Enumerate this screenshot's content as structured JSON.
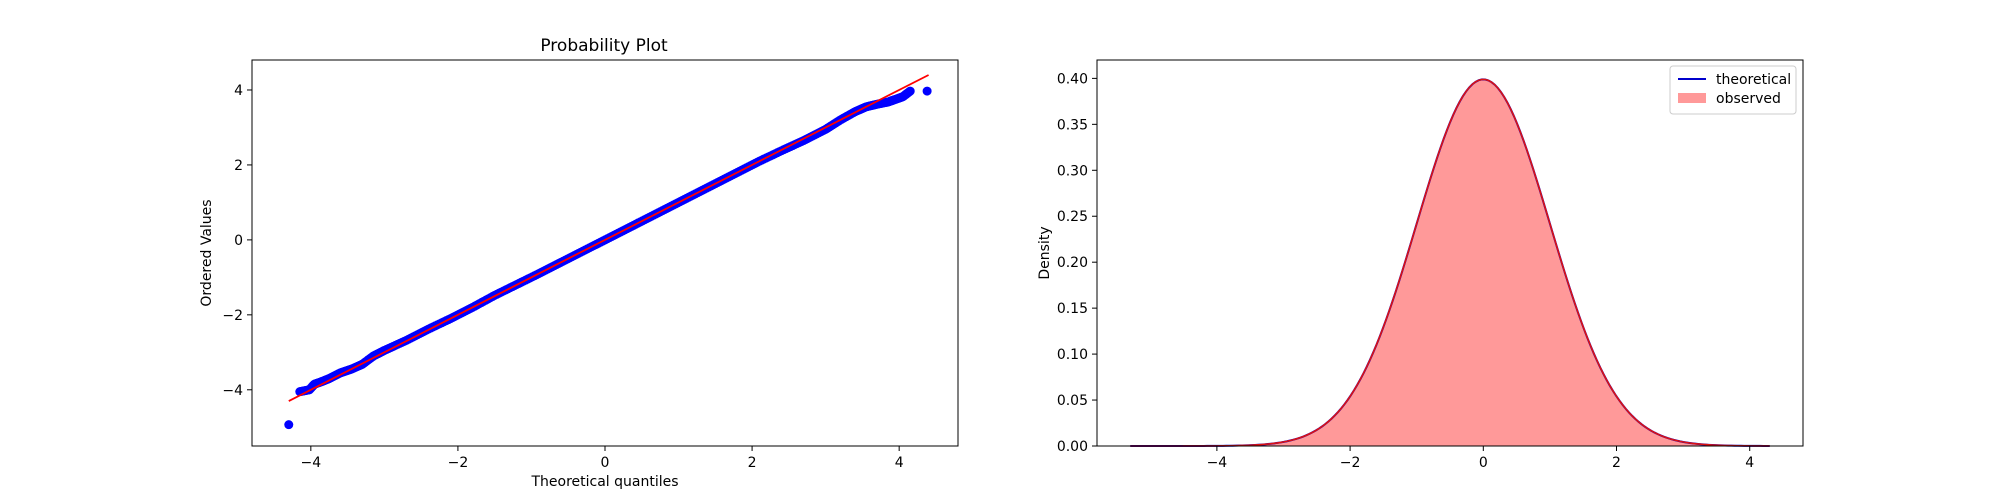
{
  "colors": {
    "points": "#0000ff",
    "fit_line": "#ff0000",
    "theoretical": "#0000cc",
    "observed_fill": "#ff9999",
    "kde": "#dd1111"
  },
  "chart_data": [
    {
      "type": "scatter",
      "title": "Probability Plot",
      "xlabel": "Theoretical quantiles",
      "ylabel": "Ordered Values",
      "xlim": [
        -4.8,
        4.8
      ],
      "ylim": [
        -5.5,
        4.8
      ],
      "xticks": [
        -4,
        -2,
        0,
        2,
        4
      ],
      "xtick_labels": [
        "−4",
        "−2",
        "0",
        "2",
        "4"
      ],
      "yticks": [
        -4,
        -2,
        0,
        2,
        4
      ],
      "ytick_labels": [
        "−4",
        "−2",
        "0",
        "2",
        "4"
      ],
      "grid": false,
      "fit_line": {
        "slope": 1.0,
        "intercept": 0.0,
        "x_range": [
          -4.3,
          4.4
        ]
      },
      "series": [
        {
          "points": [
            [
              -4.3,
              -4.93
            ],
            [
              -4.15,
              -4.05
            ],
            [
              -4.02,
              -4.0
            ],
            [
              -3.95,
              -3.85
            ],
            [
              -3.85,
              -3.78
            ],
            [
              -3.75,
              -3.7
            ],
            [
              -3.6,
              -3.55
            ],
            [
              -3.45,
              -3.45
            ],
            [
              -3.3,
              -3.32
            ],
            [
              -3.15,
              -3.1
            ],
            [
              -3.0,
              -2.95
            ],
            [
              -2.7,
              -2.68
            ],
            [
              -2.4,
              -2.38
            ],
            [
              -2.1,
              -2.1
            ],
            [
              -1.8,
              -1.8
            ],
            [
              -1.5,
              -1.48
            ],
            [
              -1.2,
              -1.19
            ],
            [
              -0.9,
              -0.9
            ],
            [
              -0.6,
              -0.6
            ],
            [
              -0.3,
              -0.3
            ],
            [
              0.0,
              0.0
            ],
            [
              0.3,
              0.3
            ],
            [
              0.6,
              0.6
            ],
            [
              0.9,
              0.9
            ],
            [
              1.2,
              1.2
            ],
            [
              1.5,
              1.5
            ],
            [
              1.8,
              1.8
            ],
            [
              2.1,
              2.1
            ],
            [
              2.4,
              2.38
            ],
            [
              2.7,
              2.65
            ],
            [
              3.0,
              2.95
            ],
            [
              3.2,
              3.2
            ],
            [
              3.4,
              3.42
            ],
            [
              3.55,
              3.55
            ],
            [
              3.7,
              3.62
            ],
            [
              3.85,
              3.68
            ],
            [
              3.95,
              3.75
            ],
            [
              4.05,
              3.82
            ],
            [
              4.15,
              3.97
            ],
            [
              4.38,
              3.97
            ]
          ]
        }
      ]
    },
    {
      "type": "area",
      "title": "",
      "xlabel": "",
      "ylabel": "Density",
      "xlim": [
        -5.8,
        4.8
      ],
      "ylim": [
        0.0,
        0.42
      ],
      "xticks": [
        -4,
        -2,
        0,
        2,
        4
      ],
      "xtick_labels": [
        "−4",
        "−2",
        "0",
        "2",
        "4"
      ],
      "yticks": [
        0.0,
        0.05,
        0.1,
        0.15,
        0.2,
        0.25,
        0.3,
        0.35,
        0.4
      ],
      "ytick_labels": [
        "0.00",
        "0.05",
        "0.10",
        "0.15",
        "0.20",
        "0.25",
        "0.30",
        "0.35",
        "0.40"
      ],
      "grid": false,
      "legend_position": "top-right",
      "series": [
        {
          "name": "theoretical",
          "kind": "line",
          "distribution": "normal",
          "mean": 0.0,
          "std": 1.0,
          "x_range": [
            -5.3,
            4.3
          ]
        },
        {
          "name": "observed",
          "kind": "histogram",
          "distribution": "normal",
          "mean": 0.0,
          "std": 1.0,
          "x_range": [
            -5.3,
            4.3
          ]
        }
      ]
    }
  ]
}
